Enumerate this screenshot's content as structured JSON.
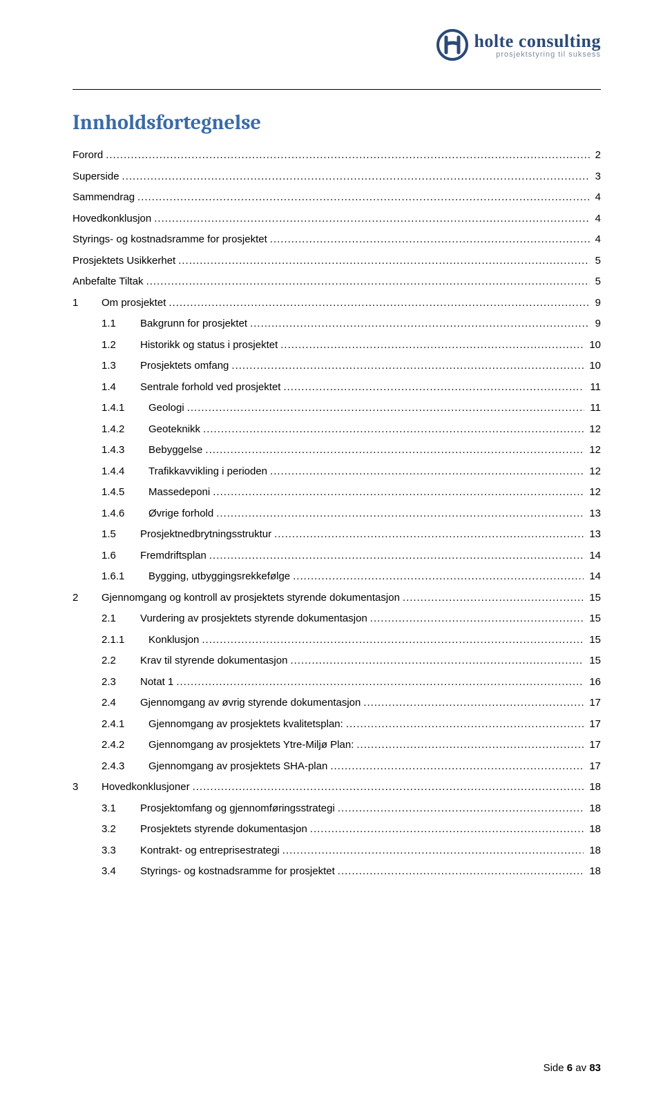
{
  "logo": {
    "name": "holte consulting",
    "tagline": "prosjektstyring til suksess",
    "colors": {
      "primary": "#2a4a78",
      "tagline": "#7a8aa0"
    }
  },
  "title": "Innholdsfortegnelse",
  "title_color": "#3a6aa8",
  "toc": [
    {
      "level": 0,
      "num": "",
      "label": "Forord",
      "page": "2"
    },
    {
      "level": 0,
      "num": "",
      "label": "Superside",
      "page": "3"
    },
    {
      "level": 0,
      "num": "",
      "label": "Sammendrag",
      "page": "4"
    },
    {
      "level": 0,
      "num": "",
      "label": "Hovedkonklusjon",
      "page": "4"
    },
    {
      "level": 0,
      "num": "",
      "label": "Styrings- og kostnadsramme for prosjektet",
      "page": "4"
    },
    {
      "level": 0,
      "num": "",
      "label": "Prosjektets Usikkerhet",
      "page": "5"
    },
    {
      "level": 0,
      "num": "",
      "label": "Anbefalte Tiltak",
      "page": "5"
    },
    {
      "level": 1,
      "num": "1",
      "label": "Om prosjektet",
      "page": "9"
    },
    {
      "level": 2,
      "num": "1.1",
      "label": "Bakgrunn for prosjektet",
      "page": "9"
    },
    {
      "level": 2,
      "num": "1.2",
      "label": "Historikk og status i prosjektet",
      "page": "10"
    },
    {
      "level": 2,
      "num": "1.3",
      "label": "Prosjektets omfang",
      "page": "10"
    },
    {
      "level": 2,
      "num": "1.4",
      "label": "Sentrale forhold ved prosjektet",
      "page": "11"
    },
    {
      "level": 3,
      "num": "1.4.1",
      "label": "Geologi",
      "page": "11"
    },
    {
      "level": 3,
      "num": "1.4.2",
      "label": "Geoteknikk",
      "page": "12"
    },
    {
      "level": 3,
      "num": "1.4.3",
      "label": "Bebyggelse",
      "page": "12"
    },
    {
      "level": 3,
      "num": "1.4.4",
      "label": "Trafikkavvikling i perioden",
      "page": "12"
    },
    {
      "level": 3,
      "num": "1.4.5",
      "label": "Massedeponi",
      "page": "12"
    },
    {
      "level": 3,
      "num": "1.4.6",
      "label": "Øvrige forhold",
      "page": "13"
    },
    {
      "level": 2,
      "num": "1.5",
      "label": "Prosjektnedbrytningsstruktur",
      "page": "13"
    },
    {
      "level": 2,
      "num": "1.6",
      "label": "Fremdriftsplan",
      "page": "14"
    },
    {
      "level": 3,
      "num": "1.6.1",
      "label": "Bygging, utbyggingsrekkefølge",
      "page": "14"
    },
    {
      "level": 1,
      "num": "2",
      "label": "Gjennomgang og kontroll av prosjektets styrende dokumentasjon",
      "page": "15"
    },
    {
      "level": 2,
      "num": "2.1",
      "label": "Vurdering av prosjektets styrende dokumentasjon",
      "page": "15"
    },
    {
      "level": 3,
      "num": "2.1.1",
      "label": "Konklusjon",
      "page": "15"
    },
    {
      "level": 2,
      "num": "2.2",
      "label": "Krav til styrende dokumentasjon",
      "page": "15"
    },
    {
      "level": 2,
      "num": "2.3",
      "label": "Notat 1",
      "page": "16"
    },
    {
      "level": 2,
      "num": "2.4",
      "label": "Gjennomgang av øvrig styrende dokumentasjon",
      "page": "17"
    },
    {
      "level": 3,
      "num": "2.4.1",
      "label": "Gjennomgang av prosjektets kvalitetsplan:",
      "page": "17"
    },
    {
      "level": 3,
      "num": "2.4.2",
      "label": "Gjennomgang av prosjektets Ytre-Miljø Plan:",
      "page": "17"
    },
    {
      "level": 3,
      "num": "2.4.3",
      "label": "Gjennomgang av prosjektets SHA-plan",
      "page": "17"
    },
    {
      "level": 1,
      "num": "3",
      "label": "Hovedkonklusjoner",
      "page": "18"
    },
    {
      "level": 2,
      "num": "3.1",
      "label": "Prosjektomfang og gjennomføringsstrategi",
      "page": "18"
    },
    {
      "level": 2,
      "num": "3.2",
      "label": "Prosjektets styrende dokumentasjon",
      "page": "18"
    },
    {
      "level": 2,
      "num": "3.3",
      "label": "Kontrakt- og entreprisestrategi",
      "page": "18"
    },
    {
      "level": 2,
      "num": "3.4",
      "label": "Styrings- og kostnadsramme for prosjektet",
      "page": "18"
    }
  ],
  "footer": {
    "prefix": "Side ",
    "current": "6",
    "separator": " av ",
    "total": "83"
  },
  "indent": {
    "lvl1_num_width": 42,
    "lvl2_indent": 42,
    "lvl2_num_width": 56,
    "lvl3_indent": 42,
    "lvl3_num_width": 68
  }
}
